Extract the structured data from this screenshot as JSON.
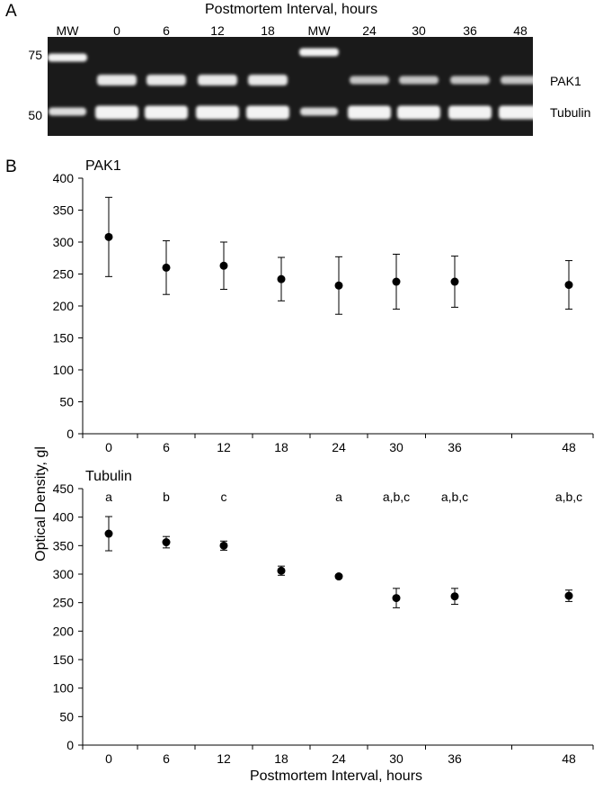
{
  "panel_a": {
    "letter": "A",
    "title": "Postmortem Interval, hours",
    "lanes": [
      "MW",
      "0",
      "6",
      "12",
      "18",
      "MW",
      "24",
      "30",
      "36",
      "48"
    ],
    "mw_markers": [
      "75",
      "50"
    ],
    "band_labels": [
      "PAK1",
      "Tubulin"
    ]
  },
  "panel_b": {
    "letter": "B",
    "ylabel": "Optical Density, gl",
    "xlabel": "Postmortem Interval, hours"
  },
  "chart_data": [
    {
      "type": "scatter",
      "title": "PAK1",
      "x": [
        0,
        6,
        12,
        18,
        24,
        30,
        36,
        48
      ],
      "x_tick_labels": [
        "0",
        "6",
        "12",
        "18",
        "24",
        "30",
        "36",
        "48"
      ],
      "y": [
        308,
        260,
        263,
        242,
        232,
        238,
        238,
        233
      ],
      "y_error": [
        62,
        42,
        37,
        34,
        45,
        43,
        40,
        38
      ],
      "ylim": [
        0,
        400
      ],
      "y_ticks": [
        "0",
        "50",
        "100",
        "150",
        "200",
        "250",
        "300",
        "350",
        "400"
      ],
      "annotations": [],
      "grid": false
    },
    {
      "type": "scatter",
      "title": "Tubulin",
      "x": [
        0,
        6,
        12,
        18,
        24,
        30,
        36,
        48
      ],
      "x_tick_labels": [
        "0",
        "6",
        "12",
        "18",
        "24",
        "30",
        "36",
        "48"
      ],
      "y": [
        371,
        356,
        350,
        306,
        296,
        258,
        261,
        262
      ],
      "y_error": [
        30,
        10,
        8,
        8,
        3,
        17,
        14,
        10
      ],
      "ylim": [
        0,
        450
      ],
      "y_ticks": [
        "0",
        "50",
        "100",
        "150",
        "200",
        "250",
        "300",
        "350",
        "400",
        "450"
      ],
      "annotations": [
        "a",
        "b",
        "c",
        "",
        "a",
        "a,b,c",
        "a,b,c",
        "a,b,c"
      ],
      "grid": false
    }
  ]
}
